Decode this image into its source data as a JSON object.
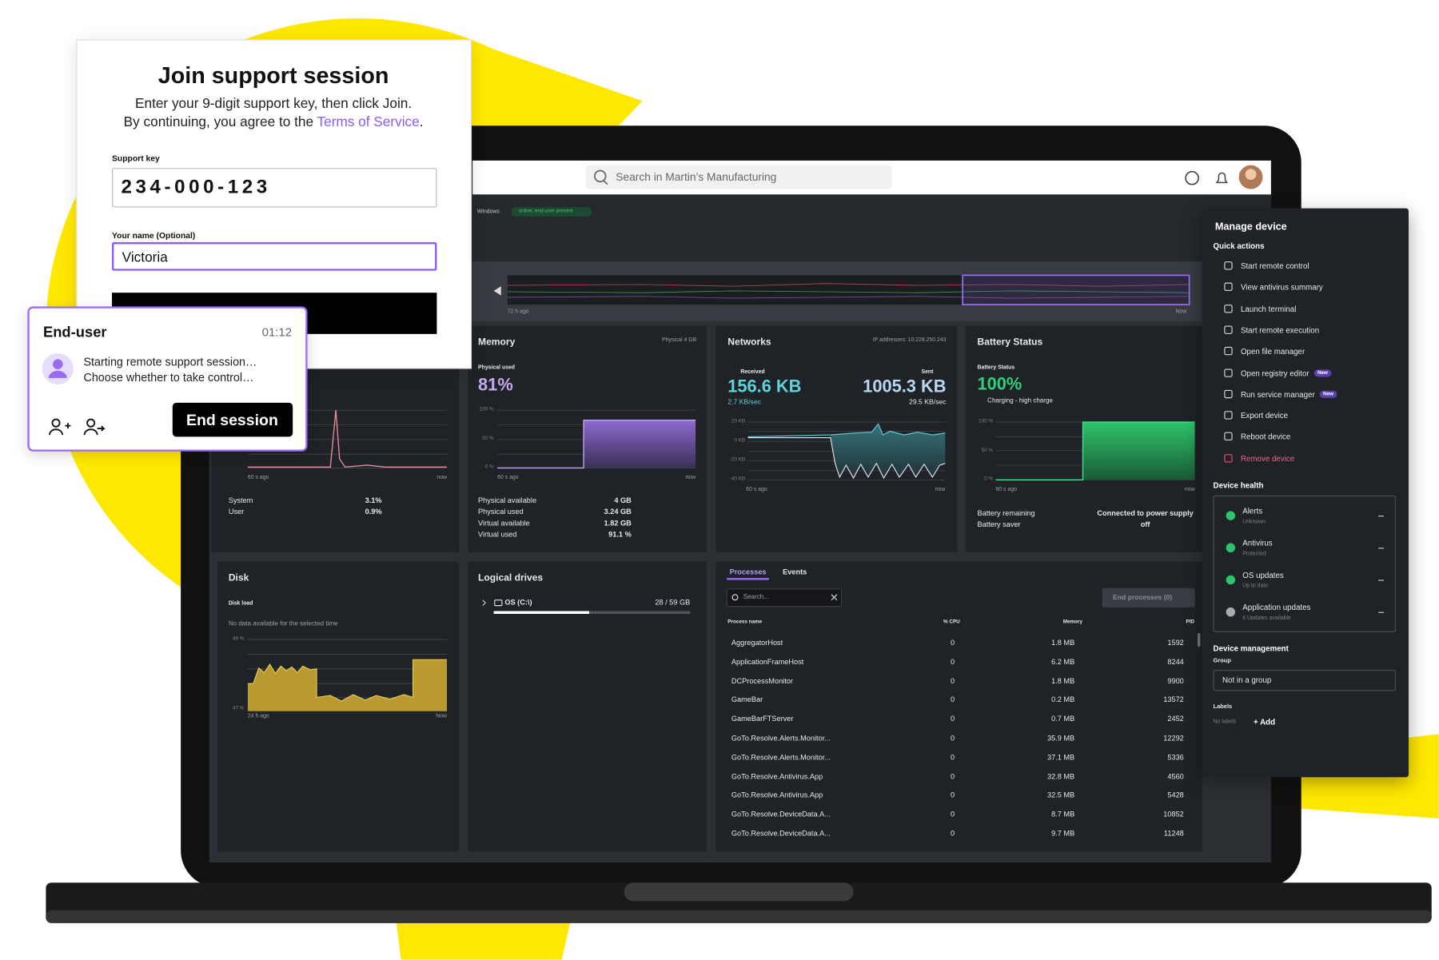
{
  "search": {
    "placeholder": "Search in Martin’s Manufacturing"
  },
  "device": {
    "os": "Windows",
    "status": "online, end-user present"
  },
  "timeline": {
    "start": "72 h ago",
    "end": "Now"
  },
  "cpu": {
    "start": "60 s ago",
    "end": "now",
    "rows": [
      [
        "System",
        "3.1%"
      ],
      [
        "User",
        "0.9%"
      ]
    ]
  },
  "memory": {
    "title": "Memory",
    "capacity": "Physical 4 GB",
    "used_label": "Physical used",
    "used_value": "81%",
    "axis": [
      "100 %",
      "50 %",
      "0 %"
    ],
    "start": "60 s ago",
    "end": "now",
    "rows": [
      [
        "Physical available",
        "4 GB"
      ],
      [
        "Physical used",
        "3.24 GB"
      ],
      [
        "Virtual available",
        "1.82 GB"
      ],
      [
        "Virtual used",
        "91.1 %"
      ]
    ]
  },
  "networks": {
    "title": "Networks",
    "ip": "IP addresses: 10.228.250.243",
    "received_label": "Received",
    "received": "156.6 KB",
    "received_rate": "2.7 KB/sec",
    "sent_label": "Sent",
    "sent": "1005.3 KB",
    "sent_rate": "29.5 KB/sec",
    "axis": [
      "20 KB",
      "0 KB",
      "-20 KB",
      "-40 KB"
    ],
    "start": "60 s ago",
    "end": "now"
  },
  "battery": {
    "title": "Battery Status",
    "status_label": "Battery Status",
    "value": "100%",
    "charging": "Charging - high charge",
    "axis": [
      "100 %",
      "50 %",
      "0 %"
    ],
    "start": "60 s ago",
    "end": "now",
    "rows": [
      [
        "Battery remaining",
        "Connected to power supply"
      ],
      [
        "Battery saver",
        "off"
      ]
    ]
  },
  "disk": {
    "title": "Disk",
    "label": "Disk load",
    "note": "No data available for the selected time",
    "axis": [
      "48 %",
      "47 %"
    ],
    "start": "24 h ago",
    "end": "Now"
  },
  "drives": {
    "title": "Logical drives",
    "name": "OS (C:\\)",
    "usage": "28 / 59 GB"
  },
  "processes": {
    "tabs": [
      "Processes",
      "Events"
    ],
    "search": "Search...",
    "end_button": "End processes (0)",
    "columns": [
      "Process name",
      "% CPU",
      "Memory",
      "PID"
    ],
    "rows": [
      [
        "AggregatorHost",
        "0",
        "1.8 MB",
        "1592"
      ],
      [
        "ApplicationFrameHost",
        "0",
        "6.2 MB",
        "8244"
      ],
      [
        "DCProcessMonitor",
        "0",
        "1.8 MB",
        "9900"
      ],
      [
        "GameBar",
        "0",
        "0.2 MB",
        "13572"
      ],
      [
        "GameBarFTServer",
        "0",
        "0.7 MB",
        "2452"
      ],
      [
        "GoTo.Resolve.Alerts.Monitor...",
        "0",
        "35.9 MB",
        "12292"
      ],
      [
        "GoTo.Resolve.Alerts.Monitor...",
        "0",
        "37.1 MB",
        "5336"
      ],
      [
        "GoTo.Resolve.Antivirus.App",
        "0",
        "32.8 MB",
        "4560"
      ],
      [
        "GoTo.Resolve.Antivirus.App",
        "0",
        "32.5 MB",
        "5428"
      ],
      [
        "GoTo.Resolve.DeviceData.A...",
        "0",
        "8.7 MB",
        "10852"
      ],
      [
        "GoTo.Resolve.DeviceData.A...",
        "0",
        "9.7 MB",
        "11248"
      ]
    ]
  },
  "manage": {
    "title": "Manage device",
    "quick_actions": "Quick actions",
    "actions": [
      {
        "label": "Start remote control"
      },
      {
        "label": "View antivirus summary"
      },
      {
        "label": "Launch terminal"
      },
      {
        "label": "Start remote execution"
      },
      {
        "label": "Open file manager"
      },
      {
        "label": "Open registry editor",
        "badge": "New"
      },
      {
        "label": "Run service manager",
        "badge": "New"
      },
      {
        "label": "Export device"
      },
      {
        "label": "Reboot device"
      },
      {
        "label": "Remove device"
      }
    ],
    "health_title": "Device health",
    "health": [
      {
        "name": "Alerts",
        "status": "Unknown"
      },
      {
        "name": "Antivirus",
        "status": "Protected"
      },
      {
        "name": "OS updates",
        "status": "Up to date"
      },
      {
        "name": "Application updates",
        "status": "6 Updates available"
      }
    ],
    "management_title": "Device management",
    "group_label": "Group",
    "group_value": "Not in a group",
    "labels_label": "Labels",
    "labels_value": "No labels",
    "add": "+ Add"
  },
  "join": {
    "title": "Join support session",
    "line1": "Enter your 9-digit support key, then click Join.",
    "line2": "By continuing, you agree to the",
    "terms": "Terms of Service",
    "terms_end": ".",
    "key_label": "Support key",
    "key": "234-000-123",
    "name_label": "Your name (Optional)",
    "name": "Victoria"
  },
  "end_user": {
    "title": "End-user",
    "time": "01:12",
    "line1": "Starting remote support session…",
    "line2": "Choose whether to take control…",
    "button": "End session"
  }
}
